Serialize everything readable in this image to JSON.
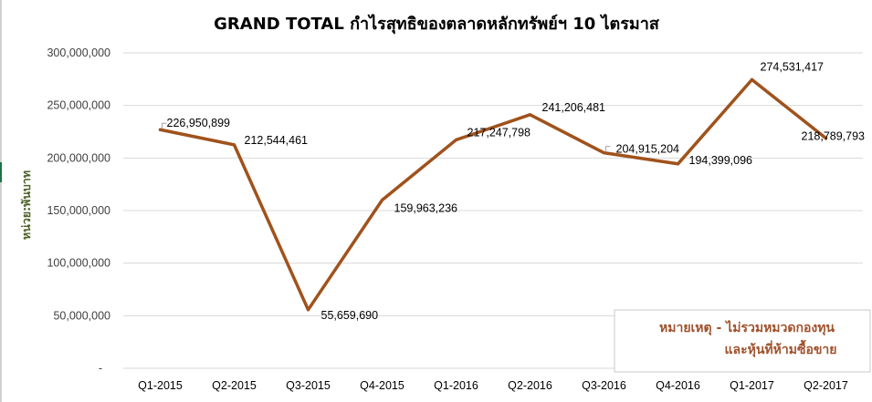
{
  "chart_data": {
    "type": "line",
    "title": "GRAND TOTAL กำไรสุทธิของตลาดหลักทรัพย์ฯ 10 ไตรมาส",
    "ylabel": "หน่วย:พันบาท",
    "xlabel": "",
    "categories": [
      "Q1-2015",
      "Q2-2015",
      "Q3-2015",
      "Q4-2015",
      "Q1-2016",
      "Q2-2016",
      "Q3-2016",
      "Q4-2016",
      "Q1-2017",
      "Q2-2017"
    ],
    "values": [
      226950899,
      212544461,
      55659690,
      159963236,
      217247798,
      241206481,
      204915204,
      194399096,
      274531417,
      218789793
    ],
    "value_labels": [
      "226,950,899",
      "212,544,461",
      "55,659,690",
      "159,963,236",
      "217,247,798",
      "241,206,481",
      "204,915,204",
      "194,399,096",
      "274,531,417",
      "218,789,793"
    ],
    "ylim": [
      0,
      300000000
    ],
    "yticks": [
      0,
      50000000,
      100000000,
      150000000,
      200000000,
      250000000,
      300000000
    ],
    "ytick_labels": [
      "-",
      "50,000,000",
      "100,000,000",
      "150,000,000",
      "200,000,000",
      "250,000,000",
      "300,000,000"
    ],
    "grid": true,
    "legend": "none",
    "line_color": "#a0521c",
    "title_color": "#000000",
    "ylabel_color": "#4f6228"
  },
  "note": {
    "line1": "หมายเหตุ - ไม่รวมหมวดกองทุน",
    "line2": "และหุ้นที่ห้ามซื้อขาย",
    "color": "#a0522d"
  }
}
